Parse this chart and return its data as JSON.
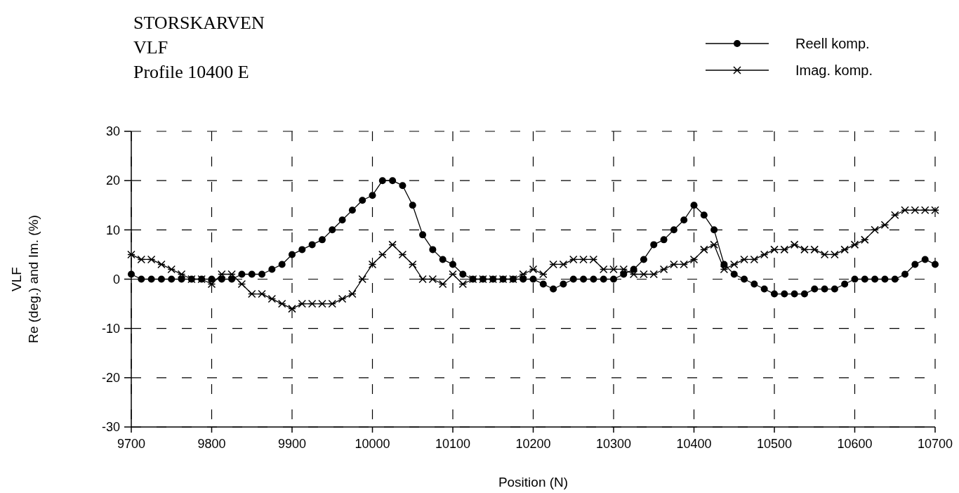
{
  "chart_data": {
    "type": "line",
    "title": "STORSKARVEN",
    "subtitle": "VLF\nProfile 10400 E",
    "xlabel": "Position (N)",
    "ylabel": "VLF\nRe (deg.) and Im. (%)",
    "x": [
      9700,
      9712.5,
      9725,
      9737.5,
      9750,
      9762.5,
      9775,
      9787.5,
      9800,
      9812.5,
      9825,
      9837.5,
      9850,
      9862.5,
      9875,
      9887.5,
      9900,
      9912.5,
      9925,
      9937.5,
      9950,
      9962.5,
      9975,
      9987.5,
      10000,
      10012.5,
      10025,
      10037.5,
      10050,
      10062.5,
      10075,
      10087.5,
      10100,
      10112.5,
      10125,
      10137.5,
      10150,
      10162.5,
      10175,
      10187.5,
      10200,
      10212.5,
      10225,
      10237.5,
      10250,
      10262.5,
      10275,
      10287.5,
      10300,
      10312.5,
      10325,
      10337.5,
      10350,
      10362.5,
      10375,
      10387.5,
      10400,
      10412.5,
      10425,
      10437.5,
      10450,
      10462.5,
      10475,
      10487.5,
      10500,
      10512.5,
      10525,
      10537.5,
      10550,
      10562.5,
      10575,
      10587.5,
      10600,
      10612.5,
      10625,
      10637.5,
      10650,
      10662.5,
      10675,
      10687.5,
      10700
    ],
    "series": [
      {
        "name": "Reell komp.",
        "color": "#000000",
        "marker": "circle",
        "values": [
          1,
          0,
          0,
          0,
          0,
          0,
          0,
          0,
          0,
          0,
          0,
          1,
          1,
          1,
          2,
          3,
          5,
          6,
          7,
          8,
          10,
          12,
          14,
          16,
          17,
          20,
          20,
          19,
          15,
          9,
          6,
          4,
          3,
          1,
          0,
          0,
          0,
          0,
          0,
          0,
          0,
          -1,
          -2,
          -1,
          0,
          0,
          0,
          0,
          0,
          1,
          2,
          4,
          7,
          8,
          10,
          12,
          15,
          13,
          10,
          3,
          1,
          0,
          -1,
          -2,
          -3,
          -3,
          -3,
          -3,
          -2,
          -2,
          -2,
          -1,
          0,
          0,
          0,
          0,
          0,
          1,
          3,
          4,
          3
        ]
      },
      {
        "name": "Imag. komp.",
        "color": "#000000",
        "marker": "cross",
        "values": [
          5,
          4,
          4,
          3,
          2,
          1,
          0,
          0,
          -1,
          1,
          1,
          -1,
          -3,
          -3,
          -4,
          -5,
          -6,
          -5,
          -5,
          -5,
          -5,
          -4,
          -3,
          0,
          3,
          5,
          7,
          5,
          3,
          0,
          0,
          -1,
          1,
          -1,
          0,
          0,
          0,
          0,
          0,
          1,
          2,
          1,
          3,
          3,
          4,
          4,
          4,
          2,
          2,
          2,
          1,
          1,
          1,
          2,
          3,
          3,
          4,
          6,
          7,
          2,
          3,
          4,
          4,
          5,
          6,
          6,
          7,
          6,
          6,
          5,
          5,
          6,
          7,
          8,
          10,
          11,
          13,
          14,
          14,
          14,
          14
        ]
      }
    ],
    "xlim": [
      9700,
      10700
    ],
    "xticks": [
      9700,
      9800,
      9900,
      10000,
      10100,
      10200,
      10300,
      10400,
      10500,
      10600,
      10700
    ],
    "ylim": [
      -30,
      30
    ],
    "yticks": [
      -30,
      -20,
      -10,
      0,
      10,
      20,
      30
    ],
    "grid": true,
    "legend": "top right",
    "line_style": "solid"
  }
}
